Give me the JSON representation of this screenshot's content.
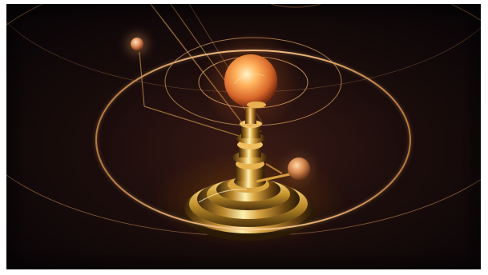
{
  "scene": {
    "subject": "orrery-illustration",
    "palette": {
      "background": "#0c0608",
      "brass_light": "#fff0b0",
      "brass_mid": "#c8962e",
      "brass_dark": "#3a2508",
      "sun_core": "#ffe0a0",
      "sun_edge": "#b84a1a",
      "orbit_line": "#e8a860"
    }
  }
}
